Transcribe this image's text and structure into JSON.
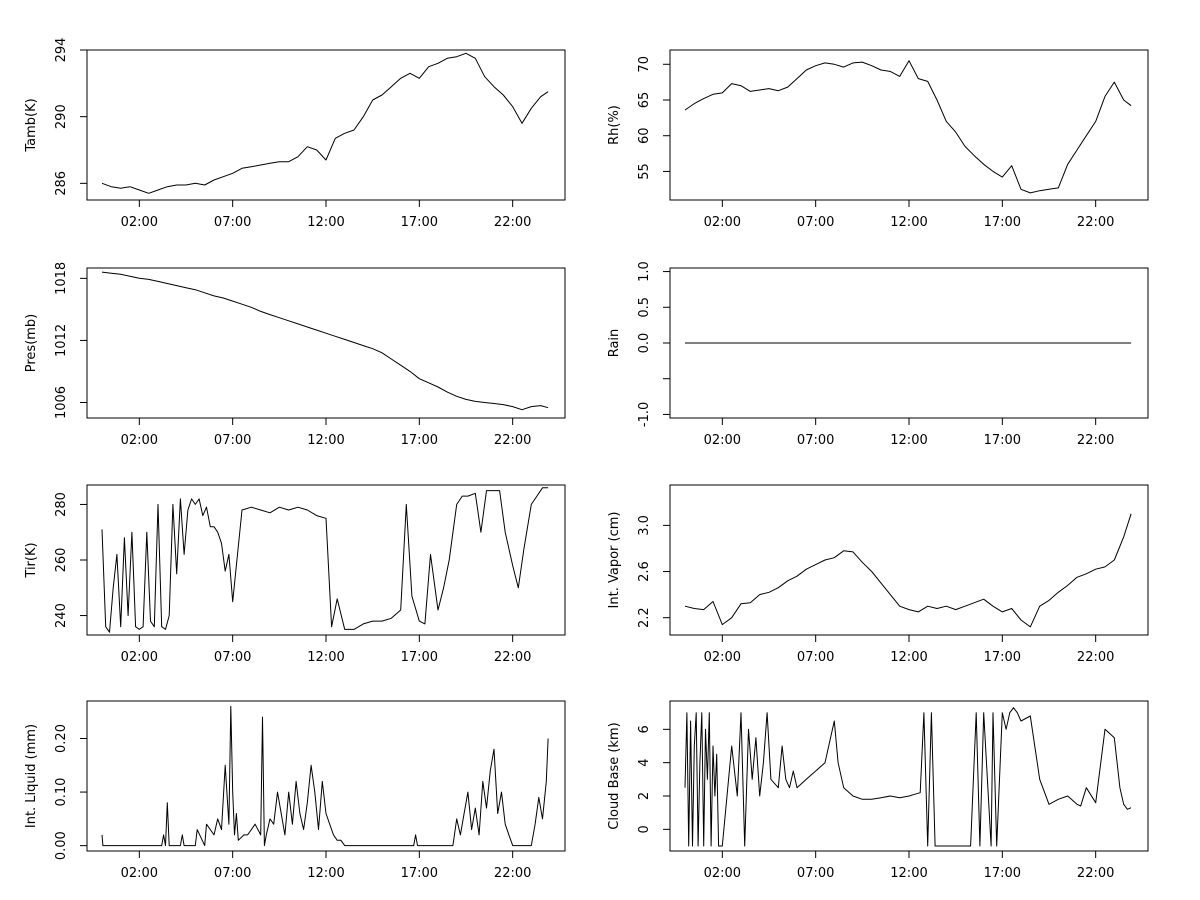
{
  "chart_data": [
    {
      "type": "line",
      "ylabel": "Tamb(K)",
      "xlim": [
        0,
        24
      ],
      "ylim": [
        285,
        294
      ],
      "xticks": [
        2,
        7,
        12,
        17,
        22
      ],
      "xtick_labels": [
        "02:00",
        "07:00",
        "12:00",
        "17:00",
        "22:00"
      ],
      "yticks": [
        286,
        290,
        294
      ],
      "ytick_labels": [
        "286",
        "290",
        "294"
      ],
      "x": [
        0,
        0.5,
        1,
        1.5,
        2,
        2.5,
        3,
        3.5,
        4,
        4.5,
        5,
        5.5,
        6,
        6.5,
        7,
        7.5,
        8,
        8.5,
        9,
        9.5,
        10,
        10.5,
        11,
        11.5,
        12,
        12.5,
        13,
        13.5,
        14,
        14.5,
        15,
        15.5,
        16,
        16.5,
        17,
        17.5,
        18,
        18.5,
        19,
        19.5,
        20,
        20.5,
        21,
        21.5,
        22,
        22.5,
        23,
        23.5,
        23.9
      ],
      "y": [
        286.0,
        285.8,
        285.7,
        285.8,
        285.6,
        285.4,
        285.6,
        285.8,
        285.9,
        285.9,
        286.0,
        285.9,
        286.2,
        286.4,
        286.6,
        286.9,
        287.0,
        287.1,
        287.2,
        287.3,
        287.3,
        287.6,
        288.2,
        288.0,
        287.4,
        288.7,
        289.0,
        289.2,
        290.0,
        291.0,
        291.3,
        291.8,
        292.3,
        292.6,
        292.3,
        293.0,
        293.2,
        293.5,
        293.6,
        293.8,
        293.5,
        292.4,
        291.8,
        291.3,
        290.6,
        289.6,
        290.5,
        291.2,
        291.5
      ],
      "xlabel": ""
    },
    {
      "type": "line",
      "ylabel": "Rh(%)",
      "xlim": [
        0,
        24
      ],
      "ylim": [
        51,
        72
      ],
      "xticks": [
        2,
        7,
        12,
        17,
        22
      ],
      "xtick_labels": [
        "02:00",
        "07:00",
        "12:00",
        "17:00",
        "22:00"
      ],
      "yticks": [
        55,
        60,
        65,
        70
      ],
      "ytick_labels": [
        "55",
        "60",
        "65",
        "70"
      ],
      "x": [
        0,
        0.5,
        1,
        1.5,
        2,
        2.5,
        3,
        3.5,
        4,
        4.5,
        5,
        5.5,
        6,
        6.5,
        7,
        7.5,
        8,
        8.5,
        9,
        9.5,
        10,
        10.5,
        11,
        11.5,
        12,
        12.5,
        13,
        13.5,
        14,
        14.5,
        15,
        15.5,
        16,
        16.5,
        17,
        17.5,
        18,
        18.5,
        19,
        19.5,
        20,
        20.5,
        21,
        21.5,
        22,
        22.5,
        23,
        23.5,
        23.9
      ],
      "y": [
        63.6,
        64.5,
        65.2,
        65.8,
        66.0,
        67.3,
        67.0,
        66.2,
        66.4,
        66.6,
        66.3,
        66.8,
        68.0,
        69.2,
        69.8,
        70.2,
        70.0,
        69.6,
        70.2,
        70.3,
        69.8,
        69.2,
        69.0,
        68.3,
        70.5,
        68.0,
        67.6,
        65.0,
        62.0,
        60.5,
        58.5,
        57.2,
        56.0,
        55.0,
        54.2,
        55.8,
        52.5,
        52.0,
        52.3,
        52.5,
        52.7,
        56.0,
        58.0,
        60.0,
        62.0,
        65.5,
        67.5,
        65.0,
        64.2
      ],
      "xlabel": ""
    },
    {
      "type": "line",
      "ylabel": "Pres(mb)",
      "xlim": [
        0,
        24
      ],
      "ylim": [
        1004.5,
        1019
      ],
      "xticks": [
        2,
        7,
        12,
        17,
        22
      ],
      "xtick_labels": [
        "02:00",
        "07:00",
        "12:00",
        "17:00",
        "22:00"
      ],
      "yticks": [
        1006,
        1012,
        1018
      ],
      "ytick_labels": [
        "1006",
        "1012",
        "1018"
      ],
      "x": [
        0,
        0.5,
        1,
        1.5,
        2,
        2.5,
        3,
        3.5,
        4,
        4.5,
        5,
        5.5,
        6,
        6.5,
        7,
        7.5,
        8,
        8.5,
        9,
        9.5,
        10,
        10.5,
        11,
        11.5,
        12,
        12.5,
        13,
        13.5,
        14,
        14.5,
        15,
        15.5,
        16,
        16.5,
        17,
        17.5,
        18,
        18.5,
        19,
        19.5,
        20,
        20.5,
        21,
        21.5,
        22,
        22.5,
        23,
        23.5,
        23.9
      ],
      "y": [
        1018.6,
        1018.5,
        1018.4,
        1018.2,
        1018.0,
        1017.9,
        1017.7,
        1017.5,
        1017.3,
        1017.1,
        1016.9,
        1016.6,
        1016.3,
        1016.1,
        1015.8,
        1015.5,
        1015.2,
        1014.8,
        1014.5,
        1014.2,
        1013.9,
        1013.6,
        1013.3,
        1013.0,
        1012.7,
        1012.4,
        1012.1,
        1011.8,
        1011.5,
        1011.2,
        1010.8,
        1010.2,
        1009.6,
        1009.0,
        1008.3,
        1007.9,
        1007.5,
        1007.0,
        1006.6,
        1006.3,
        1006.1,
        1006.0,
        1005.9,
        1005.8,
        1005.6,
        1005.3,
        1005.6,
        1005.7,
        1005.5
      ],
      "xlabel": ""
    },
    {
      "type": "line",
      "ylabel": "Rain",
      "xlim": [
        0,
        24
      ],
      "ylim": [
        -1.05,
        1.05
      ],
      "xticks": [
        2,
        7,
        12,
        17,
        22
      ],
      "xtick_labels": [
        "02:00",
        "07:00",
        "12:00",
        "17:00",
        "22:00"
      ],
      "yticks": [
        -1.0,
        -0.5,
        0.0,
        0.5,
        1.0
      ],
      "ytick_labels": [
        "-1.0",
        "",
        "0.0",
        "0.5",
        "1.0"
      ],
      "x": [
        0,
        23.9
      ],
      "y": [
        0.0,
        0.0
      ],
      "xlabel": ""
    },
    {
      "type": "line",
      "ylabel": "Tir(K)",
      "xlim": [
        0,
        24
      ],
      "ylim": [
        233,
        287
      ],
      "xticks": [
        2,
        7,
        12,
        17,
        22
      ],
      "xtick_labels": [
        "02:00",
        "07:00",
        "12:00",
        "17:00",
        "22:00"
      ],
      "yticks": [
        240,
        260,
        280
      ],
      "ytick_labels": [
        "240",
        "260",
        "280"
      ],
      "x": [
        0,
        0.2,
        0.4,
        0.6,
        0.8,
        1.0,
        1.2,
        1.4,
        1.6,
        1.8,
        2.0,
        2.2,
        2.4,
        2.6,
        2.8,
        3.0,
        3.2,
        3.4,
        3.6,
        3.8,
        4.0,
        4.2,
        4.4,
        4.6,
        4.8,
        5.0,
        5.2,
        5.4,
        5.6,
        5.8,
        6.0,
        6.2,
        6.4,
        6.6,
        6.8,
        7.0,
        7.5,
        8.0,
        8.5,
        9.0,
        9.5,
        10.0,
        10.5,
        11.0,
        11.5,
        12.0,
        12.3,
        12.6,
        13.0,
        13.5,
        14.0,
        14.5,
        15.0,
        15.5,
        16.0,
        16.3,
        16.6,
        17.0,
        17.3,
        17.6,
        18.0,
        18.3,
        18.6,
        19.0,
        19.3,
        19.6,
        20.0,
        20.3,
        20.6,
        21.0,
        21.3,
        21.6,
        22.0,
        22.3,
        22.6,
        23.0,
        23.3,
        23.6,
        23.9
      ],
      "y": [
        271,
        236,
        234,
        250,
        262,
        236,
        268,
        240,
        270,
        236,
        235,
        236,
        270,
        238,
        236,
        280,
        236,
        235,
        240,
        280,
        255,
        282,
        262,
        278,
        282,
        280,
        282,
        276,
        279,
        272,
        272,
        270,
        266,
        256,
        262,
        245,
        278,
        279,
        278,
        277,
        279,
        278,
        279,
        278,
        276,
        275,
        236,
        246,
        235,
        235,
        237,
        238,
        238,
        239,
        242,
        280,
        247,
        238,
        237,
        262,
        242,
        250,
        260,
        280,
        283,
        283,
        284,
        270,
        285,
        285,
        285,
        270,
        258,
        250,
        264,
        280,
        283,
        286,
        286
      ],
      "xlabel": ""
    },
    {
      "type": "line",
      "ylabel": "Int. Vapor (cm)",
      "xlim": [
        0,
        24
      ],
      "ylim": [
        2.05,
        3.35
      ],
      "xticks": [
        2,
        7,
        12,
        17,
        22
      ],
      "xtick_labels": [
        "02:00",
        "07:00",
        "12:00",
        "17:00",
        "22:00"
      ],
      "yticks": [
        2.2,
        2.6,
        3.0
      ],
      "ytick_labels": [
        "2.2",
        "2.6",
        "3.0"
      ],
      "x": [
        0,
        0.5,
        1,
        1.5,
        2,
        2.5,
        3,
        3.5,
        4,
        4.5,
        5,
        5.5,
        6,
        6.5,
        7,
        7.5,
        8,
        8.5,
        9,
        9.5,
        10,
        10.5,
        11,
        11.5,
        12,
        12.5,
        13,
        13.5,
        14,
        14.5,
        15,
        15.5,
        16,
        16.5,
        17,
        17.5,
        18,
        18.5,
        19,
        19.5,
        20,
        20.5,
        21,
        21.5,
        22,
        22.5,
        23,
        23.5,
        23.9
      ],
      "y": [
        2.3,
        2.28,
        2.27,
        2.34,
        2.14,
        2.2,
        2.32,
        2.33,
        2.4,
        2.42,
        2.46,
        2.52,
        2.56,
        2.62,
        2.66,
        2.7,
        2.72,
        2.78,
        2.77,
        2.68,
        2.6,
        2.5,
        2.4,
        2.3,
        2.27,
        2.25,
        2.3,
        2.28,
        2.3,
        2.27,
        2.3,
        2.33,
        2.36,
        2.3,
        2.25,
        2.28,
        2.18,
        2.12,
        2.3,
        2.35,
        2.42,
        2.48,
        2.55,
        2.58,
        2.62,
        2.64,
        2.7,
        2.9,
        3.1
      ],
      "xlabel": ""
    },
    {
      "type": "line",
      "ylabel": "Int. Liquid (mm)",
      "xlim": [
        0,
        24
      ],
      "ylim": [
        -0.01,
        0.27
      ],
      "xticks": [
        2,
        7,
        12,
        17,
        22
      ],
      "xtick_labels": [
        "02:00",
        "07:00",
        "12:00",
        "17:00",
        "22:00"
      ],
      "yticks": [
        0.0,
        0.1,
        0.2
      ],
      "ytick_labels": [
        "0.00",
        "0.10",
        "0.20"
      ],
      "x": [
        0,
        0.05,
        0.1,
        3.2,
        3.3,
        3.4,
        3.5,
        3.6,
        4.2,
        4.3,
        4.4,
        5.0,
        5.1,
        5.5,
        5.6,
        6.0,
        6.2,
        6.4,
        6.6,
        6.8,
        6.9,
        7.0,
        7.1,
        7.2,
        7.3,
        7.6,
        7.8,
        8.2,
        8.5,
        8.6,
        8.7,
        8.8,
        9.0,
        9.2,
        9.4,
        9.6,
        9.8,
        10.0,
        10.2,
        10.4,
        10.6,
        10.8,
        11.0,
        11.2,
        11.4,
        11.6,
        11.8,
        12.0,
        12.2,
        12.4,
        12.6,
        12.8,
        13.0,
        16.7,
        16.8,
        16.9,
        18.8,
        19.0,
        19.2,
        19.4,
        19.6,
        19.8,
        20.0,
        20.2,
        20.4,
        20.6,
        20.8,
        21.0,
        21.2,
        21.4,
        21.6,
        21.8,
        22.0,
        22.5,
        23.0,
        23.2,
        23.4,
        23.6,
        23.8,
        23.9
      ],
      "y": [
        0.02,
        0.0,
        0.0,
        0.0,
        0.02,
        0.0,
        0.08,
        0.0,
        0.0,
        0.02,
        0.0,
        0.0,
        0.03,
        0.0,
        0.04,
        0.02,
        0.05,
        0.03,
        0.15,
        0.04,
        0.26,
        0.1,
        0.02,
        0.06,
        0.01,
        0.02,
        0.02,
        0.04,
        0.02,
        0.24,
        0.0,
        0.02,
        0.05,
        0.04,
        0.1,
        0.06,
        0.02,
        0.1,
        0.04,
        0.12,
        0.06,
        0.03,
        0.08,
        0.15,
        0.1,
        0.03,
        0.12,
        0.06,
        0.04,
        0.02,
        0.01,
        0.01,
        0.0,
        0.0,
        0.02,
        0.0,
        0.0,
        0.05,
        0.02,
        0.06,
        0.1,
        0.03,
        0.07,
        0.02,
        0.12,
        0.07,
        0.14,
        0.18,
        0.06,
        0.1,
        0.04,
        0.02,
        0.0,
        0.0,
        0.0,
        0.04,
        0.09,
        0.05,
        0.12,
        0.2
      ],
      "xlabel": ""
    },
    {
      "type": "line",
      "ylabel": "Cloud Base (km)",
      "xlim": [
        0,
        24
      ],
      "ylim": [
        -1.3,
        7.7
      ],
      "xticks": [
        2,
        7,
        12,
        17,
        22
      ],
      "xtick_labels": [
        "02:00",
        "07:00",
        "12:00",
        "17:00",
        "22:00"
      ],
      "yticks": [
        0,
        2,
        4,
        6
      ],
      "ytick_labels": [
        "0",
        "2",
        "4",
        "6"
      ],
      "x": [
        0,
        0.1,
        0.2,
        0.3,
        0.4,
        0.5,
        0.6,
        0.7,
        0.8,
        0.9,
        1.0,
        1.1,
        1.2,
        1.3,
        1.4,
        1.5,
        1.6,
        1.7,
        1.8,
        1.9,
        2.0,
        2.5,
        2.8,
        3.0,
        3.2,
        3.4,
        3.6,
        3.8,
        4.0,
        4.2,
        4.4,
        4.6,
        5.0,
        5.2,
        5.4,
        5.6,
        5.8,
        6.0,
        6.5,
        7.0,
        7.5,
        8.0,
        8.2,
        8.5,
        9.0,
        9.5,
        10.0,
        10.5,
        11.0,
        11.5,
        12.0,
        12.3,
        12.6,
        12.8,
        13.0,
        13.2,
        13.4,
        14.0,
        14.5,
        15.0,
        15.3,
        15.6,
        15.8,
        16.0,
        16.2,
        16.4,
        16.5,
        16.7,
        17.0,
        17.2,
        17.4,
        17.6,
        17.8,
        18.0,
        18.5,
        19.0,
        19.5,
        20.0,
        20.5,
        21.0,
        21.2,
        21.5,
        22.0,
        22.5,
        23.0,
        23.3,
        23.5,
        23.7,
        23.9
      ],
      "y": [
        2.5,
        7.0,
        -1.0,
        6.5,
        -1.0,
        5.0,
        7.0,
        -1.0,
        4.0,
        7.0,
        -1.0,
        6.0,
        3.0,
        7.0,
        -1.0,
        5.0,
        2.0,
        4.5,
        -1.0,
        -1.0,
        -1.0,
        5.0,
        2.0,
        7.0,
        -1.0,
        6.0,
        3.0,
        5.5,
        2.0,
        4.0,
        7.0,
        3.0,
        2.5,
        5.0,
        3.0,
        2.5,
        3.5,
        2.5,
        3.0,
        3.5,
        4.0,
        6.5,
        4.0,
        2.5,
        2.0,
        1.8,
        1.8,
        1.9,
        2.0,
        1.9,
        2.0,
        2.1,
        2.2,
        7.0,
        -1.0,
        7.0,
        -1.0,
        -1.0,
        -1.0,
        -1.0,
        -1.0,
        7.0,
        -1.0,
        7.0,
        3.0,
        -1.0,
        7.0,
        -1.0,
        7.0,
        6.0,
        7.0,
        7.3,
        7.0,
        6.5,
        6.8,
        3.0,
        1.5,
        1.8,
        2.0,
        1.5,
        1.4,
        2.5,
        1.6,
        6.0,
        5.5,
        2.5,
        1.5,
        1.2,
        1.3
      ],
      "xlabel": ""
    }
  ]
}
